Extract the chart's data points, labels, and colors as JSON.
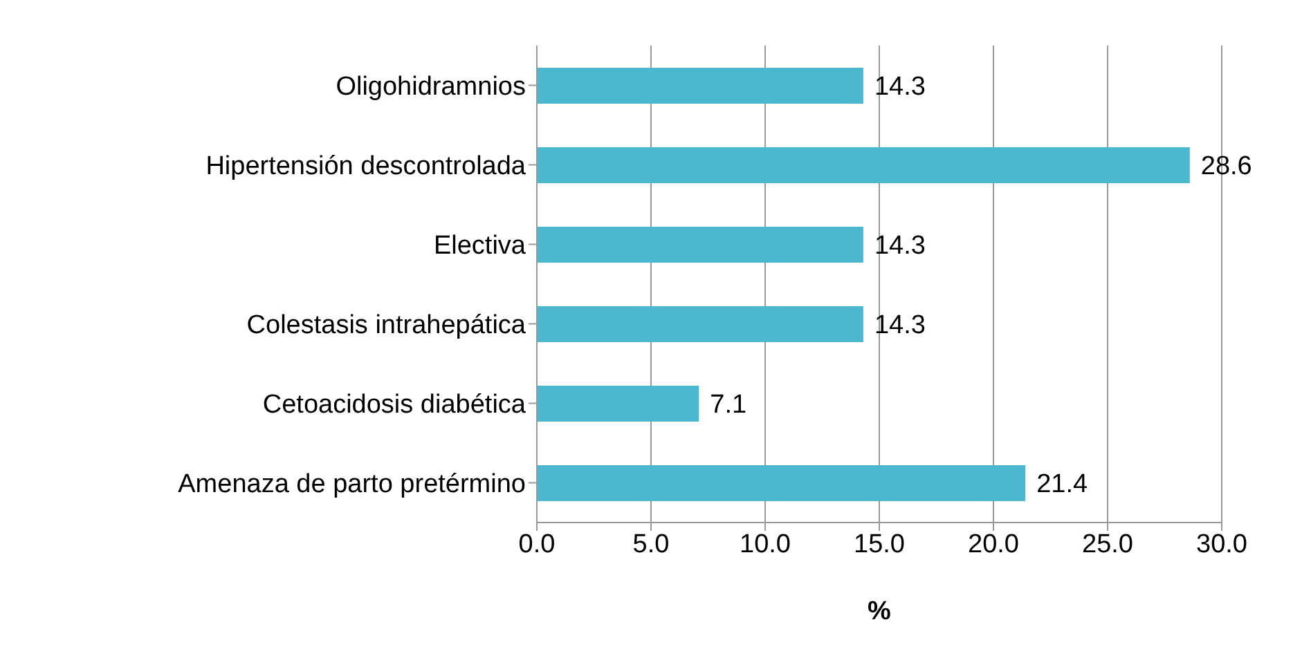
{
  "chart_data": {
    "type": "bar",
    "orientation": "horizontal",
    "xlabel": "%",
    "categories": [
      "Oligohidramnios",
      "Hipertensión descontrolada",
      "Electiva",
      "Colestasis intrahepática",
      "Cetoacidosis diabética",
      "Amenaza de parto pretérmino"
    ],
    "values": [
      14.3,
      28.6,
      14.3,
      14.3,
      7.1,
      21.4
    ],
    "color": "#4bb8cf",
    "xlim": [
      0,
      30
    ],
    "xticks": [
      {
        "value": 0,
        "label": "0.0"
      },
      {
        "value": 5,
        "label": "5.0"
      },
      {
        "value": 10,
        "label": "10.0"
      },
      {
        "value": 15,
        "label": "15.0"
      },
      {
        "value": 20,
        "label": "20.0"
      },
      {
        "value": 25,
        "label": "25.0"
      },
      {
        "value": 30,
        "label": "30.0"
      }
    ],
    "grid": "x",
    "data_labels": true
  }
}
